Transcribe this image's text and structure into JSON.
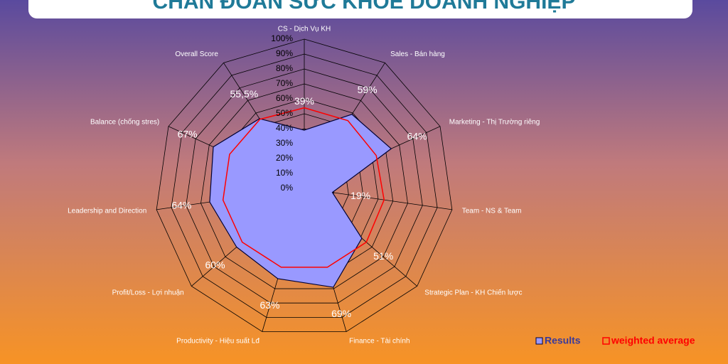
{
  "chart_data": {
    "type": "radar",
    "title": "CHẨN ĐOÁN SỨC KHỎE DOANH NGHIỆP",
    "categories": [
      "CS - Dịch Vụ KH",
      "Sales - Bán hàng",
      "Marketing - Thị Trường riêng",
      "Team - NS & Team",
      "Strategic Plan - KH Chiến lược",
      "Finance - Tài chính",
      "Productivity - Hiệu suất Lđ",
      "Profit/Loss - Lợi nhuận",
      "Leadership and Direction",
      "Balance (chống stres)",
      "Overall Score"
    ],
    "series": [
      {
        "name": "Results",
        "color": "#9999ff",
        "values": [
          39,
          59,
          64,
          19,
          51,
          69,
          63,
          60,
          64,
          67,
          55.5
        ],
        "value_labels": [
          "39%",
          "59%",
          "64%",
          "19%",
          "51%",
          "69%",
          "63%",
          "60%",
          "64%",
          "67%",
          "55,5%"
        ]
      },
      {
        "name": "weighted average",
        "color": "#ff0000",
        "values": [
          54,
          54,
          53,
          54,
          55,
          55,
          55,
          55,
          55,
          55,
          55
        ]
      }
    ],
    "ylim": [
      0,
      100
    ],
    "yticks": [
      {
        "value": 0,
        "label": "0%"
      },
      {
        "value": 10,
        "label": "10%"
      },
      {
        "value": 20,
        "label": "20%"
      },
      {
        "value": 30,
        "label": "30%"
      },
      {
        "value": 40,
        "label": "40%"
      },
      {
        "value": 50,
        "label": "50%"
      },
      {
        "value": 60,
        "label": "60%"
      },
      {
        "value": 70,
        "label": "70%"
      },
      {
        "value": 80,
        "label": "80%"
      },
      {
        "value": 90,
        "label": "90%"
      },
      {
        "value": 100,
        "label": "100%"
      }
    ],
    "grid": true
  }
}
